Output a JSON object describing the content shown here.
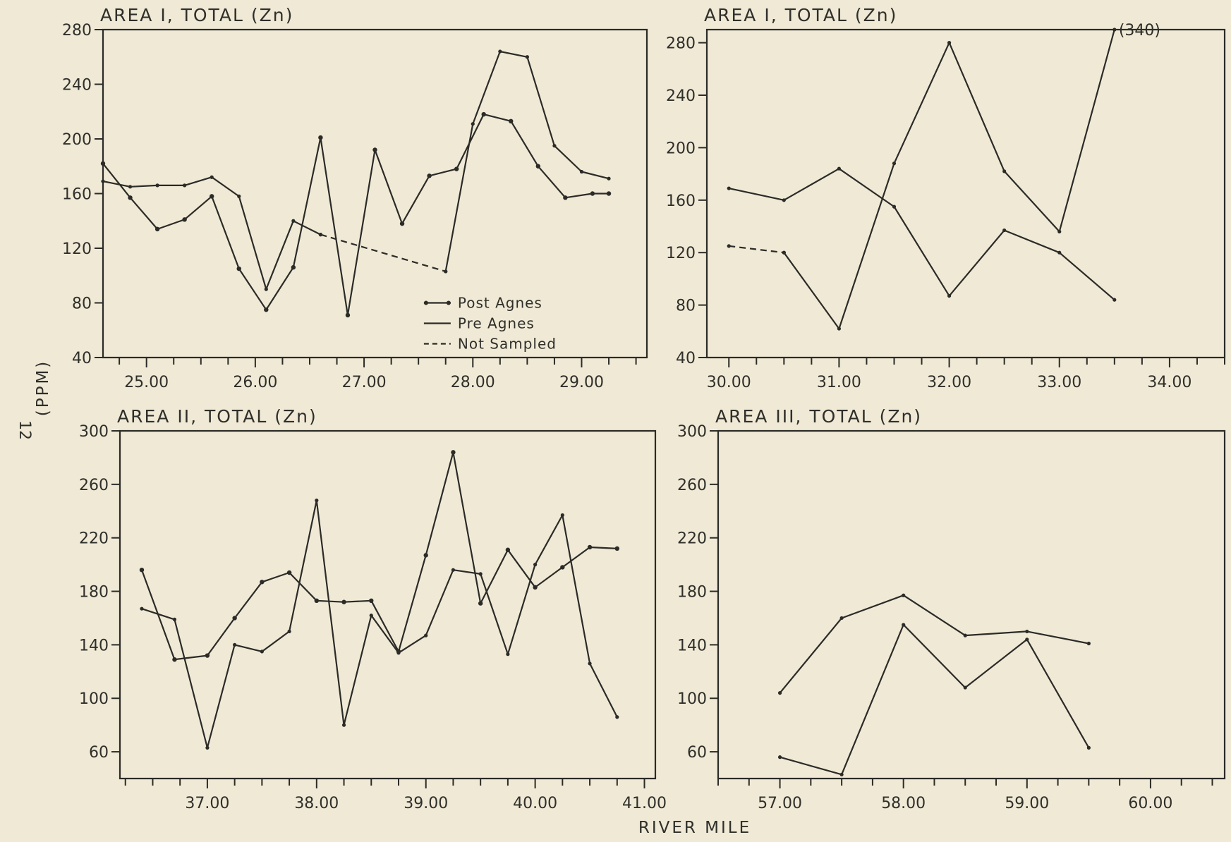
{
  "figure": {
    "page_number": "12",
    "y_axis_label": "(PPM)",
    "x_axis_label": "RIVER MILE"
  },
  "chart_data": [
    {
      "type": "line",
      "title": "AREA I, TOTAL (Zn)",
      "xlim": [
        24.6,
        29.6
      ],
      "ylim": [
        40,
        280
      ],
      "y_ticks": [
        40,
        80,
        120,
        160,
        200,
        240,
        280
      ],
      "x_ticks": [
        25.0,
        26.0,
        27.0,
        28.0,
        29.0
      ],
      "x_tick_labels": [
        "25.00",
        "26.00",
        "27.00",
        "28.00",
        "29.00"
      ],
      "legend": {
        "placement": "bottom-center",
        "entries": [
          {
            "label": "Post Agnes",
            "style": "dot-dash"
          },
          {
            "label": "Pre Agnes",
            "style": "solid"
          },
          {
            "label": "Not Sampled",
            "style": "dashed"
          }
        ]
      },
      "series": [
        {
          "style": "solid",
          "x": [
            24.6,
            24.85,
            25.1,
            25.35,
            25.6,
            25.85,
            26.1,
            26.35,
            26.6
          ],
          "y": [
            169,
            165,
            166,
            166,
            172,
            158,
            90,
            140,
            130
          ]
        },
        {
          "style": "dashed",
          "x": [
            26.6,
            27.75
          ],
          "y": [
            130,
            103
          ]
        },
        {
          "style": "solid",
          "x": [
            27.75,
            28.0,
            28.25,
            28.5,
            28.75,
            29.0,
            29.25
          ],
          "y": [
            103,
            211,
            264,
            260,
            195,
            176,
            171
          ]
        },
        {
          "style": "dot-dash",
          "x": [
            24.6,
            24.85,
            25.1,
            25.35,
            25.6,
            25.85,
            26.1,
            26.35,
            26.6,
            26.85,
            27.1,
            27.35,
            27.6,
            27.85,
            28.1,
            28.35,
            28.6,
            28.85,
            29.1,
            29.25
          ],
          "y": [
            182,
            157,
            134,
            141,
            158,
            105,
            75,
            106,
            201,
            71,
            192,
            138,
            173,
            178,
            218,
            213,
            180,
            157,
            160,
            160
          ]
        }
      ]
    },
    {
      "type": "line",
      "title": "AREA I, TOTAL (Zn)",
      "xlim": [
        29.8,
        34.5
      ],
      "ylim": [
        40,
        290
      ],
      "y_ticks": [
        40,
        80,
        120,
        160,
        200,
        240,
        280
      ],
      "x_ticks": [
        30.0,
        31.0,
        32.0,
        33.0,
        34.0
      ],
      "x_tick_labels": [
        "30.00",
        "31.00",
        "32.00",
        "33.00",
        "34.00"
      ],
      "annotations": [
        {
          "text": "(340)",
          "x": 33.5,
          "y": 290
        }
      ],
      "series": [
        {
          "style": "solid",
          "x": [
            30.0,
            30.5,
            31.0,
            31.5,
            32.0,
            32.5,
            33.0,
            33.5
          ],
          "y": [
            169,
            160,
            184,
            155,
            87,
            137,
            120,
            84
          ]
        },
        {
          "style": "solid",
          "x": [
            30.5,
            31.0,
            31.5,
            32.0,
            32.5,
            33.0,
            33.5
          ],
          "y": [
            120,
            62,
            188,
            280,
            182,
            136,
            290
          ]
        },
        {
          "style": "dashed",
          "x": [
            30.0,
            30.5
          ],
          "y": [
            125,
            120
          ]
        }
      ]
    },
    {
      "type": "line",
      "title": "AREA II, TOTAL (Zn)",
      "xlim": [
        36.2,
        41.1
      ],
      "ylim": [
        40,
        300
      ],
      "y_ticks": [
        60,
        100,
        140,
        180,
        220,
        260,
        300
      ],
      "x_ticks": [
        37.0,
        38.0,
        39.0,
        40.0,
        41.0
      ],
      "x_tick_labels": [
        "37.00",
        "38.00",
        "39.00",
        "40.00",
        "41.00"
      ],
      "series": [
        {
          "style": "solid",
          "x": [
            36.4,
            36.7,
            37.0,
            37.25,
            37.5,
            37.75,
            38.0,
            38.25,
            38.5,
            38.75,
            39.0,
            39.25,
            39.5,
            39.75,
            40.0,
            40.25,
            40.5,
            40.75
          ],
          "y": [
            167,
            159,
            63,
            140,
            135,
            150,
            248,
            80,
            162,
            134,
            147,
            196,
            193,
            133,
            200,
            237,
            126,
            86
          ]
        },
        {
          "style": "dot-dash",
          "x": [
            36.4,
            36.7,
            37.0,
            37.25,
            37.5,
            37.75,
            38.0,
            38.25,
            38.5,
            38.75,
            39.0,
            39.25,
            39.5,
            39.75,
            40.0,
            40.25,
            40.5,
            40.75
          ],
          "y": [
            196,
            129,
            132,
            160,
            187,
            194,
            173,
            172,
            173,
            135,
            207,
            284,
            171,
            211,
            183,
            198,
            213,
            212
          ]
        }
      ]
    },
    {
      "type": "line",
      "title": "AREA III, TOTAL (Zn)",
      "xlim": [
        56.5,
        60.6
      ],
      "ylim": [
        40,
        300
      ],
      "y_ticks": [
        60,
        100,
        140,
        180,
        220,
        260,
        300
      ],
      "x_ticks": [
        57.0,
        58.0,
        59.0,
        60.0
      ],
      "x_tick_labels": [
        "57.00",
        "58.00",
        "59.00",
        "60.00"
      ],
      "series": [
        {
          "style": "solid",
          "x": [
            57.0,
            57.5,
            58.0,
            58.5,
            59.0,
            59.5
          ],
          "y": [
            104,
            160,
            177,
            147,
            150,
            141
          ]
        },
        {
          "style": "solid",
          "x": [
            57.0,
            57.5,
            58.0,
            58.5,
            59.0,
            59.5
          ],
          "y": [
            56,
            43,
            155,
            108,
            144,
            63
          ]
        }
      ]
    }
  ]
}
